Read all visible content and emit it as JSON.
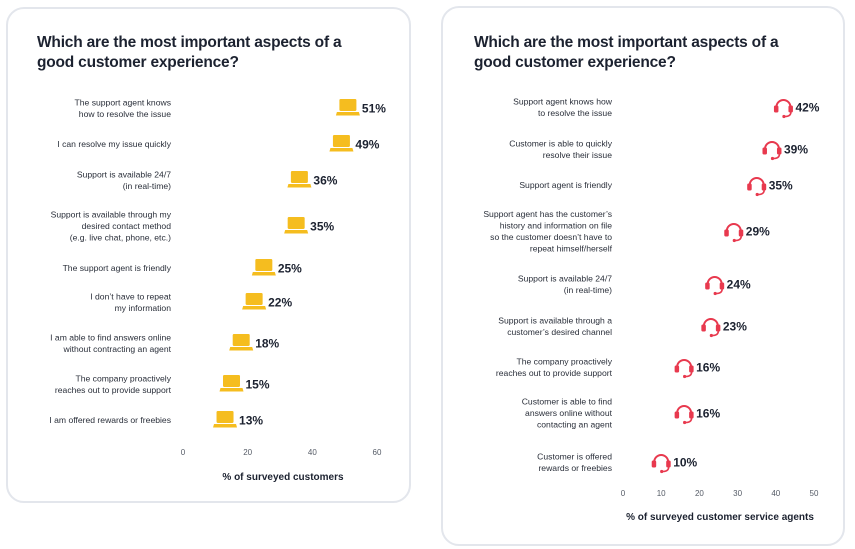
{
  "chart_data": [
    {
      "type": "scatter",
      "title": "Which are the most important aspects of a good customer experience?",
      "xlabel": "% of surveyed customers",
      "ylabel": "",
      "xlim": [
        0,
        60
      ],
      "xticks": [
        "0",
        "20",
        "40",
        "60"
      ],
      "marker": "laptop-icon",
      "marker_color": "#f5bd1f",
      "grid": false,
      "categories": [
        "The support agent knows\nhow to resolve the issue",
        "I can resolve my issue quickly",
        "Support is available 24/7\n(in real-time)",
        "Support is available through my\ndesired contact method\n(e.g. live chat, phone, etc.)",
        "The support agent is friendly",
        "I don’t have to repeat\nmy information",
        "I am able to find answers online\nwithout contracting an agent",
        "The company proactively\nreaches out to provide support",
        "I am offered rewards or freebies"
      ],
      "values": [
        51,
        49,
        36,
        35,
        25,
        22,
        18,
        15,
        13
      ],
      "value_labels": [
        "51%",
        "49%",
        "36%",
        "35%",
        "25%",
        "22%",
        "18%",
        "15%",
        "13%"
      ]
    },
    {
      "type": "scatter",
      "title": "Which are the most important aspects of a good customer experience?",
      "xlabel": "% of surveyed customer service agents",
      "ylabel": "",
      "xlim": [
        0,
        50
      ],
      "xticks": [
        "0",
        "10",
        "20",
        "30",
        "40",
        "50"
      ],
      "marker": "headset-icon",
      "marker_color": "#e8394e",
      "grid": false,
      "categories": [
        "Support agent knows how\nto resolve the issue",
        "Customer is able to quickly\nresolve their issue",
        "Support agent is friendly",
        "Support agent has the customer’s\nhistory and information on file\nso the customer doesn’t have to\nrepeat himself/herself",
        "Support is available 24/7\n(in real-time)",
        "Support is available through a\ncustomer’s desired channel",
        "The company proactively\nreaches out to provide support",
        "Customer is able to find\nanswers online without\ncontacting an agent",
        "Customer is offered\nrewards or freebies"
      ],
      "values": [
        42,
        39,
        35,
        29,
        24,
        23,
        16,
        16,
        10
      ],
      "value_labels": [
        "42%",
        "39%",
        "35%",
        "29%",
        "24%",
        "23%",
        "16%",
        "16%",
        "10%"
      ]
    }
  ]
}
